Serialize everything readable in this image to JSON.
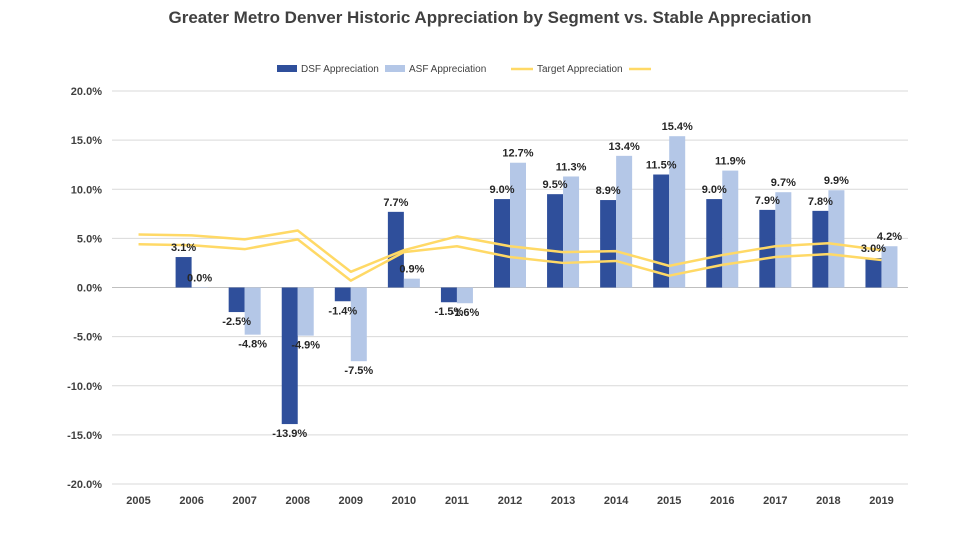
{
  "chart_data": {
    "type": "bar",
    "title": "Greater Metro Denver Historic Appreciation by Segment vs. Stable Appreciation",
    "xlabel": "",
    "ylabel": "",
    "categories": [
      "2005",
      "2006",
      "2007",
      "2008",
      "2009",
      "2010",
      "2011",
      "2012",
      "2013",
      "2014",
      "2015",
      "2016",
      "2017",
      "2018",
      "2019"
    ],
    "ylim": [
      -0.2,
      0.2
    ],
    "yticks": [
      -0.2,
      -0.15,
      -0.1,
      -0.05,
      0.0,
      0.05,
      0.1,
      0.15,
      0.2
    ],
    "ytick_labels": [
      "-20.0%",
      "-15.0%",
      "-10.0%",
      "-5.0%",
      "0.0%",
      "5.0%",
      "10.0%",
      "15.0%",
      "20.0%"
    ],
    "grid": true,
    "legend_position": "top",
    "series": [
      {
        "name": "DSF Appreciation",
        "kind": "bar",
        "color": "#2F4F9B",
        "values": [
          null,
          0.031,
          -0.025,
          -0.139,
          -0.014,
          0.077,
          -0.015,
          0.09,
          0.095,
          0.089,
          0.115,
          0.09,
          0.079,
          0.078,
          0.03
        ],
        "labels": [
          "",
          "3.1%",
          "-2.5%",
          "-13.9%",
          "-1.4%",
          "7.7%",
          "-1.5%",
          "9.0%",
          "9.5%",
          "8.9%",
          "11.5%",
          "9.0%",
          "7.9%",
          "7.8%",
          "3.0%"
        ]
      },
      {
        "name": "ASF Appreciation",
        "kind": "bar",
        "color": "#B4C7E7",
        "values": [
          null,
          0.0,
          -0.048,
          -0.049,
          -0.075,
          0.009,
          -0.016,
          0.127,
          0.113,
          0.134,
          0.154,
          0.119,
          0.097,
          0.099,
          0.042
        ],
        "labels": [
          "",
          "0.0%",
          "-4.8%",
          "-4.9%",
          "-7.5%",
          "0.9%",
          "-1.6%",
          "12.7%",
          "11.3%",
          "13.4%",
          "15.4%",
          "11.9%",
          "9.7%",
          "9.9%",
          "4.2%"
        ]
      },
      {
        "name": "Target Appreciation",
        "kind": "line",
        "color": "#FFD966",
        "values": [
          0.044,
          0.043,
          0.039,
          0.049,
          0.007,
          0.036,
          0.042,
          0.031,
          0.025,
          0.027,
          0.012,
          0.023,
          0.031,
          0.034,
          0.028
        ]
      },
      {
        "name": "",
        "kind": "line",
        "color": "#FFD966",
        "values": [
          0.054,
          0.053,
          0.049,
          0.058,
          0.016,
          0.038,
          0.052,
          0.042,
          0.036,
          0.037,
          0.022,
          0.033,
          0.042,
          0.045,
          0.038
        ]
      }
    ]
  }
}
